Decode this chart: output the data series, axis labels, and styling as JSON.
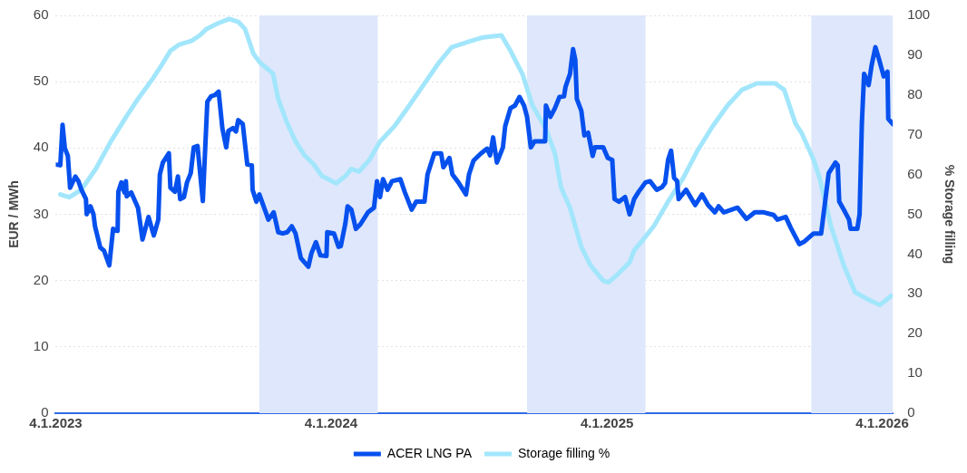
{
  "chart_data": {
    "type": "line",
    "xlim": [
      "2023-01-04",
      "2026-01-18"
    ],
    "xticks": [
      {
        "value": "2023-01-04",
        "label": "4.1.2023"
      },
      {
        "value": "2024-01-04",
        "label": "4.1.2024"
      },
      {
        "value": "2025-01-04",
        "label": "4.1.2025"
      },
      {
        "value": "2026-01-04",
        "label": "4.1.2026"
      }
    ],
    "ylim": [
      0,
      60
    ],
    "yticks": [
      0,
      10,
      20,
      30,
      40,
      50,
      60
    ],
    "y2lim": [
      0,
      100
    ],
    "y2ticks": [
      0,
      10,
      20,
      30,
      40,
      50,
      60,
      70,
      80,
      90,
      100
    ],
    "ylabel": "EUR / MWh",
    "y2label": "% Storage filling",
    "grid": "y",
    "legend": "bottom",
    "marker": "none",
    "line_style": "solid",
    "bands": [
      {
        "axis": "x",
        "from": "2023-10-01",
        "to": "2024-03-06",
        "color": "#dee7fb"
      },
      {
        "axis": "x",
        "from": "2024-09-20",
        "to": "2025-02-24",
        "color": "#dee7fb"
      },
      {
        "axis": "x",
        "from": "2025-10-02",
        "to": "2026-01-18",
        "color": "#dee7fb"
      }
    ],
    "series": [
      {
        "name": "ACER LNG PA",
        "color": "#0650ee",
        "x": [
          "2023-01-04",
          "2023-01-10",
          "2023-01-13",
          "2023-01-16",
          "2023-01-20",
          "2023-01-23",
          "2023-01-30",
          "2023-02-03",
          "2023-02-07",
          "2023-02-13",
          "2023-02-14",
          "2023-02-19",
          "2023-02-23",
          "2023-02-25",
          "2023-03-04",
          "2023-03-09",
          "2023-03-16",
          "2023-03-21",
          "2023-03-27",
          "2023-03-28",
          "2023-04-01",
          "2023-04-05",
          "2023-04-07",
          "2023-04-08",
          "2023-04-14",
          "2023-04-23",
          "2023-04-29",
          "2023-05-07",
          "2023-05-14",
          "2023-05-20",
          "2023-05-22",
          "2023-05-26",
          "2023-06-03",
          "2023-06-05",
          "2023-06-11",
          "2023-06-15",
          "2023-06-18",
          "2023-06-23",
          "2023-06-27",
          "2023-07-02",
          "2023-07-06",
          "2023-07-11",
          "2023-07-18",
          "2023-07-24",
          "2023-07-29",
          "2023-08-03",
          "2023-08-08",
          "2023-08-13",
          "2023-08-18",
          "2023-08-21",
          "2023-08-27",
          "2023-08-31",
          "2023-09-03",
          "2023-09-09",
          "2023-09-15",
          "2023-09-21",
          "2023-09-22",
          "2023-09-27",
          "2023-10-01",
          "2023-10-13",
          "2023-10-20",
          "2023-10-26",
          "2023-11-01",
          "2023-11-07",
          "2023-11-13",
          "2023-11-18",
          "2023-11-25",
          "2023-12-05",
          "2023-12-09",
          "2023-12-15",
          "2023-12-21",
          "2023-12-29",
          "2023-12-30",
          "2024-01-08",
          "2024-01-14",
          "2024-01-17",
          "2024-01-23",
          "2024-01-26",
          "2024-01-31",
          "2024-02-06",
          "2024-02-12",
          "2024-02-22",
          "2024-03-01",
          "2024-03-05",
          "2024-03-09",
          "2024-03-13",
          "2024-03-19",
          "2024-03-25",
          "2024-04-05",
          "2024-04-11",
          "2024-04-20",
          "2024-04-26",
          "2024-05-07",
          "2024-05-11",
          "2024-05-20",
          "2024-05-29",
          "2024-06-01",
          "2024-06-09",
          "2024-06-13",
          "2024-06-21",
          "2024-07-01",
          "2024-07-05",
          "2024-07-11",
          "2024-07-21",
          "2024-07-29",
          "2024-08-02",
          "2024-08-06",
          "2024-08-11",
          "2024-08-19",
          "2024-08-22",
          "2024-08-29",
          "2024-09-04",
          "2024-09-10",
          "2024-09-16",
          "2024-09-20",
          "2024-09-25",
          "2024-09-30",
          "2024-10-14",
          "2024-10-15",
          "2024-10-21",
          "2024-10-27",
          "2024-11-02",
          "2024-11-08",
          "2024-11-10",
          "2024-11-16",
          "2024-11-20",
          "2024-11-23",
          "2024-11-25",
          "2024-12-01",
          "2024-12-05",
          "2024-12-10",
          "2024-12-16",
          "2024-12-19",
          "2024-12-30",
          "2025-01-05",
          "2025-01-11",
          "2025-01-14",
          "2025-01-20",
          "2025-01-28",
          "2025-02-03",
          "2025-02-09",
          "2025-02-15",
          "2025-02-24",
          "2025-03-02",
          "2025-03-11",
          "2025-03-18",
          "2025-03-22",
          "2025-03-26",
          "2025-03-30",
          "2025-04-03",
          "2025-04-07",
          "2025-04-09",
          "2025-04-19",
          "2025-05-01",
          "2025-05-10",
          "2025-05-18",
          "2025-05-27",
          "2025-06-01",
          "2025-06-08",
          "2025-06-26",
          "2025-07-08",
          "2025-07-19",
          "2025-07-31",
          "2025-08-13",
          "2025-08-18",
          "2025-08-29",
          "2025-09-05",
          "2025-09-16",
          "2025-09-23",
          "2025-10-05",
          "2025-10-15",
          "2025-10-25",
          "2025-11-03",
          "2025-11-06",
          "2025-11-08",
          "2025-11-15",
          "2025-11-21",
          "2025-11-23",
          "2025-12-02",
          "2025-12-05",
          "2025-12-08",
          "2025-12-11",
          "2025-12-17",
          "2025-12-21",
          "2025-12-26",
          "2025-12-31",
          "2026-01-06",
          "2026-01-11",
          "2026-01-12",
          "2026-01-18"
        ],
        "values": [
          37.5,
          37.4,
          43.5,
          40,
          38.8,
          34,
          35.7,
          35,
          33.7,
          32.3,
          30,
          31.2,
          30,
          28.2,
          25,
          24.5,
          22.3,
          27.8,
          27.5,
          33.4,
          34.8,
          33.3,
          35,
          32.7,
          33.3,
          31,
          26.2,
          29.6,
          26.8,
          29.2,
          36,
          37.8,
          39.2,
          34,
          33.4,
          35.7,
          32.3,
          32.6,
          34.8,
          36.2,
          40.1,
          40.3,
          32,
          47,
          47.8,
          48,
          48.5,
          42.9,
          40.1,
          42.6,
          43,
          42.5,
          44.2,
          43.6,
          37.5,
          37.4,
          33.7,
          31.9,
          33,
          29.2,
          30.3,
          27.3,
          27.1,
          27.3,
          28.2,
          27.1,
          23.4,
          22.1,
          24.1,
          25.8,
          23.8,
          23.7,
          27.3,
          27.1,
          25.1,
          25.2,
          28.6,
          31.2,
          30.7,
          27.8,
          28.5,
          30.3,
          31,
          35,
          32.6,
          35.3,
          33.7,
          35,
          35.3,
          33.3,
          30.7,
          31.9,
          31.9,
          36,
          39.2,
          39.2,
          37.1,
          38.5,
          36,
          34.8,
          33,
          36,
          38.1,
          39.2,
          39.9,
          38.9,
          41.6,
          37.8,
          40.1,
          43.3,
          46,
          46.4,
          47.7,
          46.4,
          44.7,
          40.1,
          41,
          41,
          46.4,
          44.7,
          46,
          47.7,
          47.8,
          49.2,
          51.2,
          54.9,
          53.3,
          47.4,
          45.6,
          41.9,
          42.3,
          38.8,
          40.1,
          40.1,
          38.5,
          38.2,
          32.3,
          31.9,
          32.6,
          30,
          32.3,
          33.4,
          34.8,
          35,
          33.7,
          34.1,
          34.7,
          38.2,
          39.6,
          35.5,
          35,
          32.3,
          33.7,
          31.4,
          33,
          31.4,
          30.3,
          31.2,
          30.3,
          31,
          29.3,
          30.3,
          30.3,
          29.9,
          29.2,
          29.6,
          27.9,
          25.5,
          25.9,
          27.1,
          27.1,
          36.2,
          37.8,
          37.4,
          31.9,
          30.5,
          29.2,
          27.8,
          27.8,
          30,
          43.7,
          51.2,
          49.5,
          52.5,
          55.2,
          53.3,
          50.8,
          51.5,
          44.4,
          43.6
        ]
      },
      {
        "name": "Storage filling %",
        "color": "#a2e6fc",
        "axis": "y2",
        "x": [
          "2023-01-10",
          "2023-01-22",
          "2023-02-07",
          "2023-02-26",
          "2023-03-18",
          "2023-04-07",
          "2023-04-23",
          "2023-05-13",
          "2023-05-25",
          "2023-06-05",
          "2023-06-17",
          "2023-07-03",
          "2023-07-14",
          "2023-07-23",
          "2023-08-07",
          "2023-08-22",
          "2023-09-03",
          "2023-09-12",
          "2023-09-23",
          "2023-10-02",
          "2023-10-19",
          "2023-10-26",
          "2023-11-06",
          "2023-11-18",
          "2023-11-30",
          "2023-12-12",
          "2023-12-23",
          "2024-01-11",
          "2024-01-23",
          "2024-01-31",
          "2024-02-10",
          "2024-02-24",
          "2024-03-09",
          "2024-03-28",
          "2024-04-17",
          "2024-05-07",
          "2024-05-26",
          "2024-06-12",
          "2024-07-05",
          "2024-07-24",
          "2024-08-17",
          "2024-08-29",
          "2024-09-14",
          "2024-09-27",
          "2024-10-15",
          "2024-10-27",
          "2024-11-04",
          "2024-11-16",
          "2024-12-01",
          "2024-12-13",
          "2024-12-30",
          "2025-01-06",
          "2025-01-18",
          "2025-02-03",
          "2025-02-09",
          "2025-02-19",
          "2025-03-07",
          "2025-03-26",
          "2025-04-15",
          "2025-05-04",
          "2025-05-24",
          "2025-06-13",
          "2025-07-02",
          "2025-07-22",
          "2025-08-15",
          "2025-08-27",
          "2025-09-11",
          "2025-09-19",
          "2025-10-05",
          "2025-10-13",
          "2025-10-28",
          "2025-11-14",
          "2025-11-29",
          "2025-12-19",
          "2026-01-01",
          "2026-01-16"
        ],
        "values": [
          55,
          54.3,
          56.2,
          61.4,
          68.3,
          74.4,
          79,
          84.2,
          87.7,
          91.1,
          92.7,
          93.6,
          95,
          96.6,
          98,
          99.1,
          98.4,
          96.6,
          90.4,
          88.1,
          85.4,
          79,
          73.3,
          68.3,
          64.8,
          62.6,
          59.6,
          57.8,
          59.6,
          61.4,
          60.7,
          63.7,
          68.3,
          72.1,
          77.4,
          82.9,
          88.1,
          92,
          93.4,
          94.5,
          95,
          91.1,
          85.2,
          77.4,
          71.5,
          65.3,
          56.8,
          51.6,
          41.8,
          37.2,
          33.3,
          32.9,
          34.9,
          37.9,
          40.9,
          43.2,
          47,
          53.2,
          59.1,
          66,
          72.1,
          77.4,
          81.3,
          82.9,
          82.9,
          81.3,
          72.8,
          70.5,
          63.7,
          59.1,
          47,
          37.2,
          30.4,
          28.3,
          27.2,
          29.5
        ]
      }
    ]
  }
}
